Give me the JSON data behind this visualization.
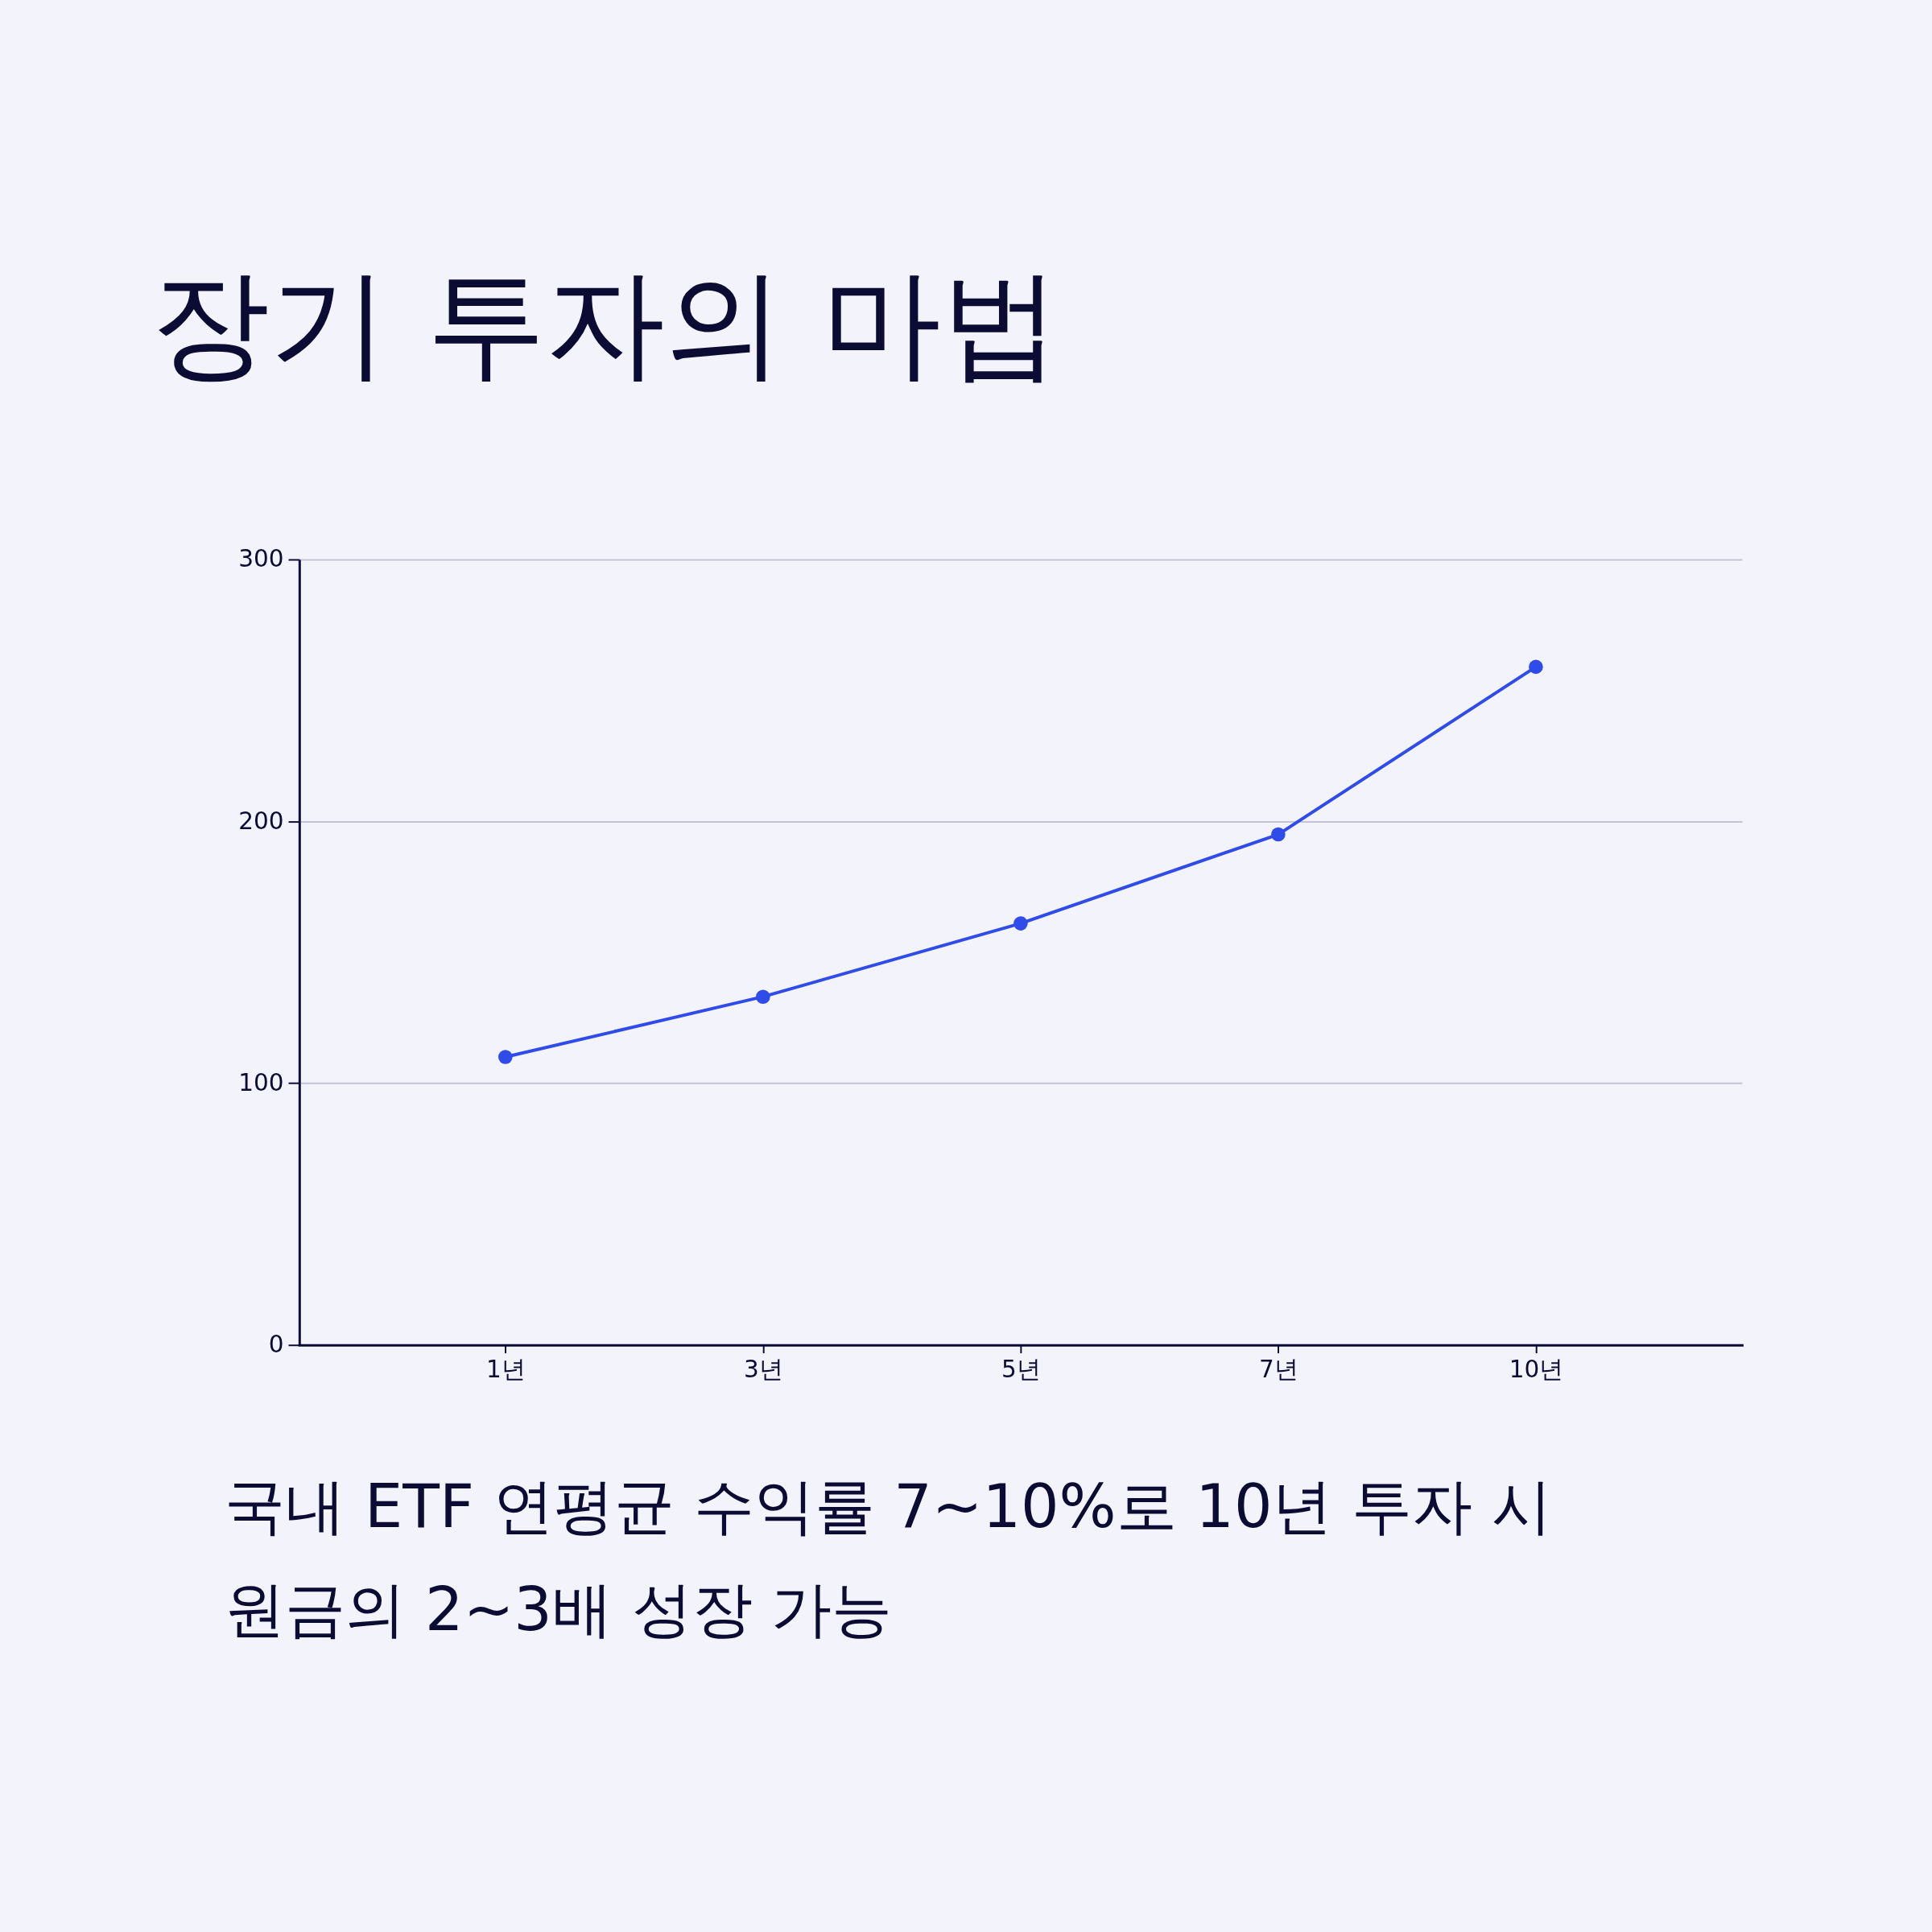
{
  "chart_data": {
    "type": "line",
    "title": "장기 투자의 마법",
    "categories": [
      "1년",
      "3년",
      "5년",
      "7년",
      "10년"
    ],
    "series": [
      {
        "color": "#2f4bea",
        "values": [
          110,
          133,
          161,
          195,
          259
        ]
      }
    ],
    "ylim": [
      0,
      300
    ],
    "yticks": [
      0,
      100,
      200,
      300
    ],
    "grid": "y",
    "marker": "circle",
    "line_style": "solid",
    "annotations": [
      "국내 ETF 연평균 수익률 7~10%로 10년 투자 시 원금의 2~3배 성장 가능"
    ]
  }
}
